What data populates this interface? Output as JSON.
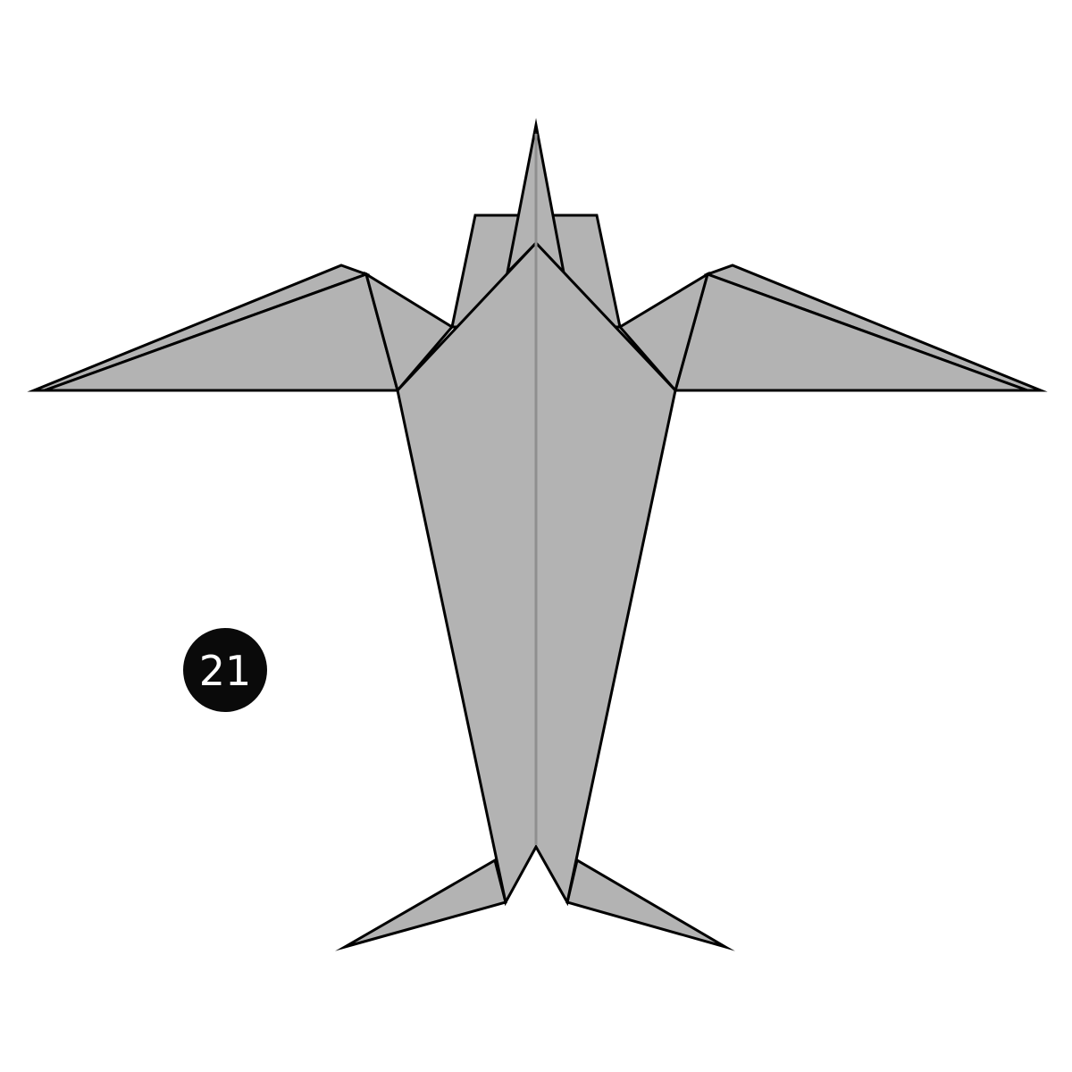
{
  "step": {
    "number": "21"
  },
  "colors": {
    "paper_fill": "#b3b3b3",
    "outline": "#000000",
    "center_crease": "#8f8f8f",
    "badge_fill": "#0a0a0a",
    "badge_text": "#ffffff",
    "background": "#ffffff"
  }
}
